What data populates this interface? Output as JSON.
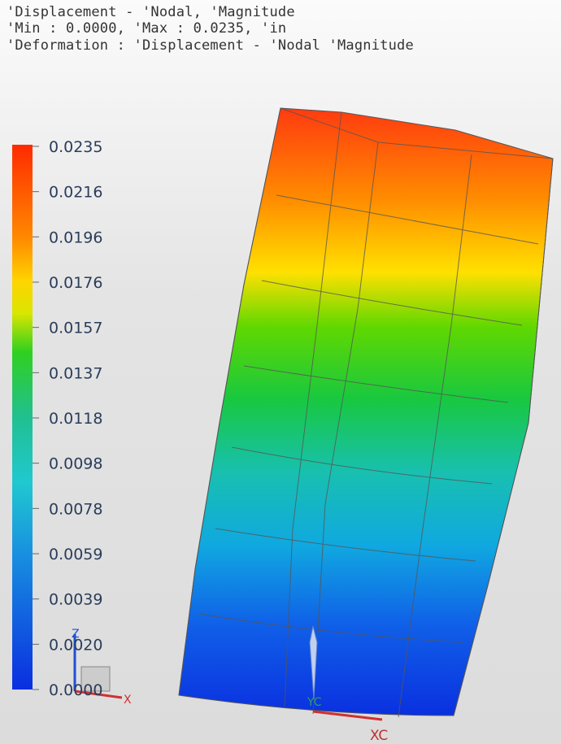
{
  "header": {
    "lines": [
      "'Displacement - 'Nodal, 'Magnitude",
      "'Min : 0.0000, 'Max : 0.0235, 'in",
      "'Deformation : 'Displacement - 'Nodal 'Magnitude"
    ]
  },
  "legend": {
    "labels": [
      "0.0235",
      "0.0216",
      "0.0196",
      "0.0176",
      "0.0157",
      "0.0137",
      "0.0118",
      "0.0098",
      "0.0078",
      "0.0059",
      "0.0039",
      "0.0020",
      "0.0000"
    ]
  },
  "triad": {
    "z": "Z",
    "x": "X",
    "yc": "YC",
    "xc": "XC"
  }
}
